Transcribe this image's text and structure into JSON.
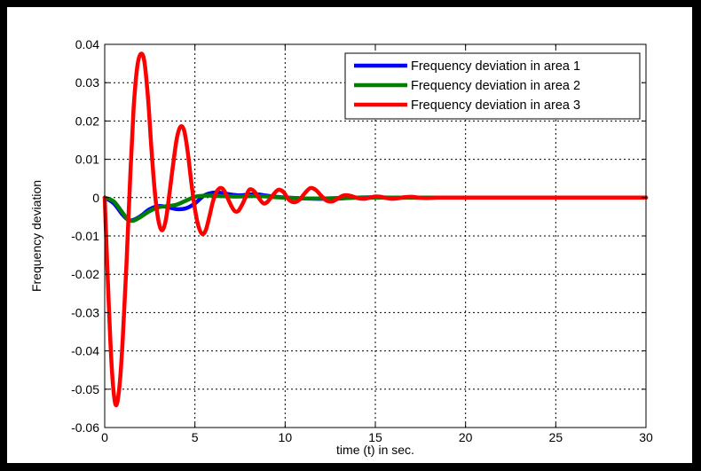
{
  "chart_data": {
    "type": "line",
    "title": "",
    "xlabel": "time (t) in sec.",
    "ylabel": "Frequency deviation",
    "xlim": [
      0,
      30
    ],
    "ylim": [
      -0.06,
      0.04
    ],
    "xticks": [
      0,
      5,
      10,
      15,
      20,
      25,
      30
    ],
    "xtick_labels": [
      "0",
      "5",
      "10",
      "15",
      "20",
      "25",
      "30"
    ],
    "yticks": [
      -0.06,
      -0.05,
      -0.04,
      -0.03,
      -0.02,
      -0.01,
      0,
      0.01,
      0.02,
      0.03,
      0.04
    ],
    "ytick_labels": [
      "-0.06",
      "-0.05",
      "-0.04",
      "-0.03",
      "-0.02",
      "-0.01",
      "0",
      "0.01",
      "0.02",
      "0.03",
      "0.04"
    ],
    "grid": true,
    "legend_position": "top-right",
    "series": [
      {
        "name": "Frequency deviation in area 1",
        "color": "#0000ff",
        "x": [
          0,
          0.5,
          1,
          1.3,
          1.6,
          2,
          2.5,
          3,
          3.5,
          4,
          4.5,
          5,
          5.5,
          6,
          6.5,
          7,
          7.5,
          8,
          8.5,
          9,
          9.5,
          10,
          11,
          12,
          13,
          14,
          15,
          16,
          18,
          20,
          30
        ],
        "y": [
          0,
          -0.0015,
          -0.0045,
          -0.0058,
          -0.0058,
          -0.0048,
          -0.003,
          -0.0022,
          -0.0025,
          -0.003,
          -0.0028,
          -0.0015,
          0.0005,
          0.0013,
          0.0012,
          0.0008,
          0.0006,
          0.0008,
          0.0008,
          0.0005,
          0.0002,
          0,
          -0.0002,
          -0.0003,
          -0.0002,
          0,
          0.0001,
          0,
          0,
          0,
          0
        ]
      },
      {
        "name": "Frequency deviation in area 2",
        "color": "#008000",
        "x": [
          0,
          0.5,
          1,
          1.3,
          1.6,
          2,
          2.5,
          3,
          3.5,
          4,
          4.5,
          5,
          5.5,
          6,
          6.5,
          7,
          7.5,
          8,
          8.5,
          9,
          9.5,
          10,
          11,
          12,
          13,
          14,
          15,
          16,
          18,
          20,
          30
        ],
        "y": [
          0,
          -0.001,
          -0.004,
          -0.0058,
          -0.006,
          -0.005,
          -0.0035,
          -0.0025,
          -0.0022,
          -0.0018,
          -0.0008,
          0.0002,
          0.0005,
          0.0005,
          0.0004,
          0.0003,
          0.0003,
          0.0004,
          0.0004,
          0.0003,
          0.0001,
          0,
          -0.0002,
          -0.0002,
          -0.0001,
          0,
          0,
          0,
          0,
          0,
          0
        ]
      },
      {
        "name": "Frequency deviation in area 3",
        "color": "#ff0000",
        "x": [
          0,
          0.2,
          0.4,
          0.6,
          0.8,
          1.0,
          1.2,
          1.4,
          1.6,
          1.8,
          2.0,
          2.2,
          2.4,
          2.6,
          2.8,
          3.0,
          3.2,
          3.4,
          3.6,
          3.8,
          4.0,
          4.2,
          4.4,
          4.6,
          4.8,
          5.0,
          5.2,
          5.4,
          5.6,
          5.8,
          6.0,
          6.2,
          6.4,
          6.6,
          6.8,
          7.0,
          7.2,
          7.4,
          7.6,
          7.8,
          8.0,
          8.2,
          8.4,
          8.6,
          8.8,
          9.0,
          9.3,
          9.6,
          9.9,
          10.2,
          10.5,
          10.8,
          11.1,
          11.4,
          11.7,
          12.0,
          12.3,
          12.6,
          12.9,
          13.2,
          13.5,
          13.8,
          14.1,
          14.4,
          14.7,
          15.0,
          15.3,
          15.6,
          15.9,
          16.2,
          16.6,
          17.0,
          17.4,
          17.8,
          18.4,
          19.0,
          20,
          22,
          25,
          30
        ],
        "y": [
          0,
          -0.025,
          -0.045,
          -0.054,
          -0.05,
          -0.037,
          -0.018,
          0.004,
          0.023,
          0.034,
          0.0375,
          0.0355,
          0.026,
          0.012,
          0.0005,
          -0.0065,
          -0.0085,
          -0.0055,
          0.0015,
          0.009,
          0.0155,
          0.0185,
          0.0175,
          0.012,
          0.004,
          -0.003,
          -0.0075,
          -0.0095,
          -0.0085,
          -0.005,
          -0.001,
          0.0015,
          0.0025,
          0.002,
          0,
          -0.002,
          -0.0035,
          -0.0035,
          -0.002,
          0,
          0.002,
          0.002,
          0.001,
          -0.0005,
          -0.0015,
          -0.0012,
          0.0005,
          0.002,
          0.0015,
          -0.0005,
          -0.0012,
          -0.0005,
          0.0012,
          0.0025,
          0.002,
          0.0005,
          -0.0008,
          -0.001,
          -0.0003,
          0.0005,
          0.0006,
          0.0002,
          -0.0002,
          -0.0003,
          0,
          0.0003,
          0.0002,
          -0.0001,
          -0.0003,
          -0.0002,
          0.0001,
          0.0002,
          0,
          -0.0001,
          0,
          0,
          0,
          0,
          0,
          0
        ]
      }
    ]
  }
}
